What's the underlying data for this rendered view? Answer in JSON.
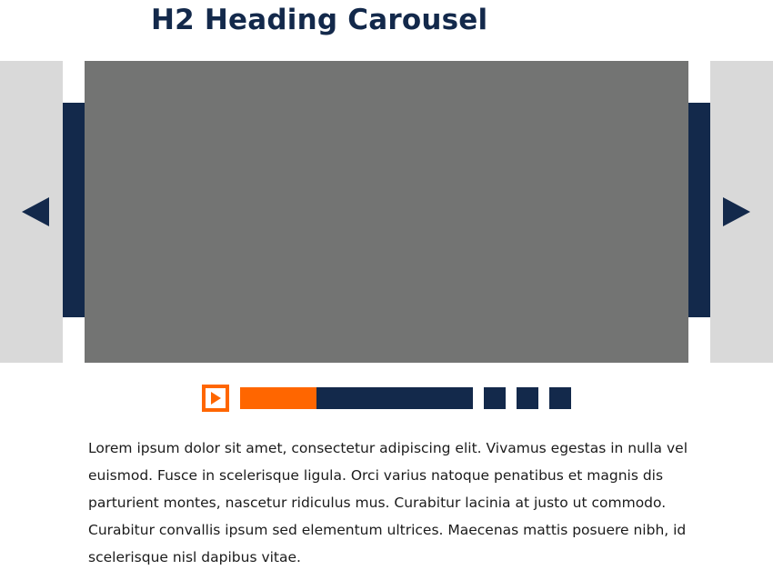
{
  "heading": "H2 Heading Carousel",
  "carousel": {
    "prev_icon": "triangle-left-icon",
    "next_icon": "triangle-right-icon",
    "slide_color": "#737473",
    "accent_color": "#ff6600",
    "navy_color": "#13294b",
    "side_color": "#d9d9d9",
    "total_slides": 4
  },
  "controls": {
    "play_icon": "play-icon",
    "progress_fraction": 0.33
  },
  "description": "Lorem ipsum dolor sit amet, consectetur adipiscing elit. Vivamus egestas in nulla vel euismod. Fusce in scelerisque ligula. Orci varius natoque penatibus et magnis dis parturient montes, nascetur ridiculus mus. Curabitur lacinia at justo ut commodo. Curabitur convallis ipsum sed elementum ultrices. Maecenas mattis posuere nibh, id scelerisque nisl dapibus vitae."
}
